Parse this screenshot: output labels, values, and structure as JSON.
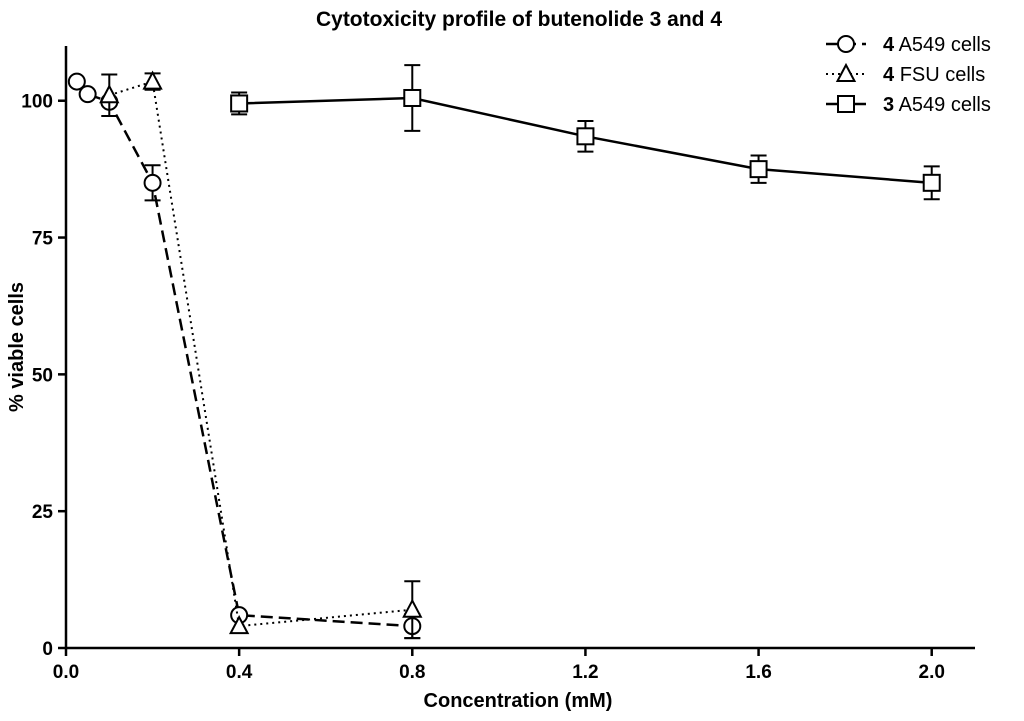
{
  "chart_data": {
    "type": "line",
    "title": "Cytotoxicity profile of butenolide 3 and 4",
    "xlabel": "Concentration (mM)",
    "ylabel": "% viable cells",
    "xlim": [
      0,
      2.1
    ],
    "ylim": [
      0,
      110
    ],
    "x_ticks": [
      "0.0",
      "0.4",
      "0.8",
      "1.2",
      "1.6",
      "2.0"
    ],
    "y_ticks": [
      "0",
      "25",
      "50",
      "75",
      "100"
    ],
    "legend_position": "top-right",
    "series": [
      {
        "name": "A549 cells",
        "compound": "4",
        "marker": "circle",
        "line_style": "dashed",
        "points": [
          {
            "x": 0.025,
            "y": 103.5,
            "err": 0
          },
          {
            "x": 0.05,
            "y": 101.2,
            "err": 0
          },
          {
            "x": 0.1,
            "y": 99.8,
            "err": 0
          },
          {
            "x": 0.2,
            "y": 85.0,
            "err": 3.2
          },
          {
            "x": 0.4,
            "y": 6.0,
            "err": 0
          },
          {
            "x": 0.8,
            "y": 4.0,
            "err": 2.2
          }
        ]
      },
      {
        "name": "FSU cells",
        "compound": "4",
        "marker": "triangle",
        "line_style": "dotted",
        "points": [
          {
            "x": 0.1,
            "y": 101.0,
            "err": 3.8
          },
          {
            "x": 0.2,
            "y": 103.5,
            "err": 1.5
          },
          {
            "x": 0.4,
            "y": 4.0,
            "err": 0
          },
          {
            "x": 0.8,
            "y": 7.0,
            "err": 5.2
          }
        ]
      },
      {
        "name": "A549 cells",
        "compound": "3",
        "marker": "square",
        "line_style": "solid",
        "points": [
          {
            "x": 0.4,
            "y": 99.5,
            "err": 2.0
          },
          {
            "x": 0.8,
            "y": 100.5,
            "err": 6.0
          },
          {
            "x": 1.2,
            "y": 93.5,
            "err": 2.8
          },
          {
            "x": 1.6,
            "y": 87.5,
            "err": 2.5
          },
          {
            "x": 2.0,
            "y": 85.0,
            "err": 3.0
          }
        ]
      }
    ]
  }
}
